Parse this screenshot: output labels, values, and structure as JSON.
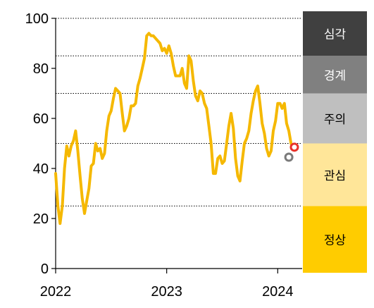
{
  "chart_data": {
    "type": "line",
    "x_unit": "year",
    "x_ticks": [
      "2022",
      "2023",
      "2024"
    ],
    "y_ticks": [
      0,
      20,
      40,
      60,
      80,
      100
    ],
    "ylim": [
      0,
      100
    ],
    "xlim": [
      2022.0,
      2024.22
    ],
    "dotted_gridlines": [
      25,
      50,
      70,
      85,
      100
    ],
    "series": [
      {
        "color": "#f5b800",
        "points": [
          [
            2022.0,
            38
          ],
          [
            2022.02,
            25
          ],
          [
            2022.04,
            18
          ],
          [
            2022.06,
            25
          ],
          [
            2022.08,
            40
          ],
          [
            2022.1,
            49
          ],
          [
            2022.12,
            45
          ],
          [
            2022.14,
            49
          ],
          [
            2022.16,
            51
          ],
          [
            2022.18,
            55
          ],
          [
            2022.2,
            47
          ],
          [
            2022.22,
            37
          ],
          [
            2022.24,
            28
          ],
          [
            2022.26,
            22
          ],
          [
            2022.28,
            27
          ],
          [
            2022.3,
            32
          ],
          [
            2022.32,
            41
          ],
          [
            2022.34,
            42
          ],
          [
            2022.36,
            50
          ],
          [
            2022.38,
            47
          ],
          [
            2022.4,
            48
          ],
          [
            2022.42,
            44
          ],
          [
            2022.44,
            46
          ],
          [
            2022.46,
            55
          ],
          [
            2022.48,
            61
          ],
          [
            2022.5,
            63
          ],
          [
            2022.52,
            68
          ],
          [
            2022.54,
            72
          ],
          [
            2022.56,
            71
          ],
          [
            2022.58,
            70
          ],
          [
            2022.6,
            62
          ],
          [
            2022.62,
            55
          ],
          [
            2022.64,
            57
          ],
          [
            2022.66,
            60
          ],
          [
            2022.68,
            65
          ],
          [
            2022.7,
            65
          ],
          [
            2022.72,
            66
          ],
          [
            2022.74,
            73
          ],
          [
            2022.76,
            76
          ],
          [
            2022.78,
            80
          ],
          [
            2022.8,
            84
          ],
          [
            2022.82,
            93
          ],
          [
            2022.84,
            94
          ],
          [
            2022.86,
            93
          ],
          [
            2022.88,
            93
          ],
          [
            2022.9,
            92
          ],
          [
            2022.92,
            91
          ],
          [
            2022.94,
            90
          ],
          [
            2022.96,
            87
          ],
          [
            2022.98,
            88
          ],
          [
            2023.0,
            86
          ],
          [
            2023.02,
            89
          ],
          [
            2023.04,
            86
          ],
          [
            2023.06,
            81
          ],
          [
            2023.08,
            77
          ],
          [
            2023.1,
            77
          ],
          [
            2023.12,
            77
          ],
          [
            2023.14,
            80
          ],
          [
            2023.16,
            74
          ],
          [
            2023.18,
            72
          ],
          [
            2023.2,
            85
          ],
          [
            2023.22,
            83
          ],
          [
            2023.24,
            75
          ],
          [
            2023.26,
            69
          ],
          [
            2023.28,
            67
          ],
          [
            2023.3,
            71
          ],
          [
            2023.32,
            70
          ],
          [
            2023.34,
            66
          ],
          [
            2023.36,
            64
          ],
          [
            2023.38,
            57
          ],
          [
            2023.4,
            50
          ],
          [
            2023.42,
            38
          ],
          [
            2023.44,
            38
          ],
          [
            2023.46,
            44
          ],
          [
            2023.48,
            45
          ],
          [
            2023.5,
            42
          ],
          [
            2023.52,
            43
          ],
          [
            2023.54,
            50
          ],
          [
            2023.56,
            57
          ],
          [
            2023.58,
            62
          ],
          [
            2023.6,
            56
          ],
          [
            2023.62,
            44
          ],
          [
            2023.64,
            37
          ],
          [
            2023.66,
            35
          ],
          [
            2023.68,
            43
          ],
          [
            2023.7,
            50
          ],
          [
            2023.72,
            52
          ],
          [
            2023.74,
            55
          ],
          [
            2023.76,
            62
          ],
          [
            2023.78,
            67
          ],
          [
            2023.8,
            71
          ],
          [
            2023.82,
            73
          ],
          [
            2023.84,
            66
          ],
          [
            2023.86,
            58
          ],
          [
            2023.88,
            54
          ],
          [
            2023.9,
            48
          ],
          [
            2023.92,
            45
          ],
          [
            2023.94,
            47
          ],
          [
            2023.96,
            55
          ],
          [
            2023.98,
            59
          ],
          [
            2024.0,
            66
          ],
          [
            2024.02,
            66
          ],
          [
            2024.04,
            64
          ],
          [
            2024.06,
            66
          ],
          [
            2024.08,
            58
          ],
          [
            2024.1,
            55
          ],
          [
            2024.12,
            50
          ],
          [
            2024.14,
            48
          ]
        ]
      }
    ],
    "markers": [
      {
        "x": 2024.15,
        "y": 48.5,
        "stroke": "#e8322a",
        "fill": "#ffffff"
      },
      {
        "x": 2024.1,
        "y": 44.5,
        "stroke": "#7a7a7a",
        "fill": "#ffffff"
      }
    ],
    "risk_bands": [
      {
        "label": "정상",
        "from": 0,
        "to": 25,
        "color": "#ffcc00",
        "text_color": "#000000"
      },
      {
        "label": "관심",
        "from": 25,
        "to": 50,
        "color": "#ffe699",
        "text_color": "#000000"
      },
      {
        "label": "주의",
        "from": 50,
        "to": 70,
        "color": "#bfbfbf",
        "text_color": "#000000"
      },
      {
        "label": "경계",
        "from": 70,
        "to": 85,
        "color": "#808080",
        "text_color": "#ffffff"
      },
      {
        "label": "심각",
        "from": 85,
        "to": 100,
        "color": "#404040",
        "text_color": "#ffffff"
      }
    ]
  }
}
